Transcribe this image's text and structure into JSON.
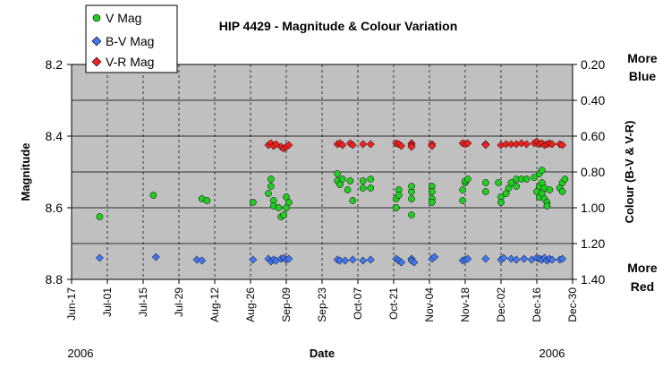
{
  "chart_data": {
    "type": "scatter",
    "title": "HIP 4429 - Magnitude & Colour Variation",
    "xlabel": "Date",
    "ylabel": "Magnitude",
    "y2label": "Colour (B-V & V-R)",
    "x_year_left": "2006",
    "x_year_right": "2006",
    "y2_top_note": [
      "More",
      "Blue"
    ],
    "y2_bottom_note": [
      "More",
      "Red"
    ],
    "x_ticks": [
      "Jun-17",
      "Jul-01",
      "Jul-15",
      "Jul-29",
      "Aug-12",
      "Aug-26",
      "Sep-09",
      "Sep-23",
      "Oct-07",
      "Oct-21",
      "Nov-04",
      "Nov-18",
      "Dec-02",
      "Dec-16",
      "Dec-30"
    ],
    "x_range": [
      "2006-06-17",
      "2006-12-30"
    ],
    "y_ticks": [
      "8.2",
      "8.4",
      "8.6",
      "8.8"
    ],
    "y_range": [
      8.2,
      8.8
    ],
    "y_inverted": true,
    "y2_ticks": [
      "0.20",
      "0.40",
      "0.60",
      "0.80",
      "1.00",
      "1.20",
      "1.40"
    ],
    "y2_range": [
      0.2,
      1.4
    ],
    "y2_inverted": true,
    "grid": {
      "horizontal": true,
      "vertical": "dashed"
    },
    "legend_position": "top-left",
    "series": [
      {
        "name": "V Mag",
        "axis": "left",
        "color": "#22cc22",
        "marker": "circle",
        "points": [
          [
            "2006-06-28",
            8.625
          ],
          [
            "2006-07-19",
            8.565
          ],
          [
            "2006-08-07",
            8.575
          ],
          [
            "2006-08-09",
            8.58
          ],
          [
            "2006-08-27",
            8.585
          ],
          [
            "2006-09-02",
            8.56
          ],
          [
            "2006-09-03",
            8.52
          ],
          [
            "2006-09-03",
            8.54
          ],
          [
            "2006-09-04",
            8.58
          ],
          [
            "2006-09-04",
            8.595
          ],
          [
            "2006-09-06",
            8.6
          ],
          [
            "2006-09-07",
            8.625
          ],
          [
            "2006-09-08",
            8.62
          ],
          [
            "2006-09-09",
            8.57
          ],
          [
            "2006-09-09",
            8.6
          ],
          [
            "2006-09-10",
            8.585
          ],
          [
            "2006-09-29",
            8.505
          ],
          [
            "2006-09-29",
            8.525
          ],
          [
            "2006-09-30",
            8.535
          ],
          [
            "2006-10-01",
            8.52
          ],
          [
            "2006-10-03",
            8.55
          ],
          [
            "2006-10-04",
            8.525
          ],
          [
            "2006-10-05",
            8.58
          ],
          [
            "2006-10-09",
            8.525
          ],
          [
            "2006-10-09",
            8.545
          ],
          [
            "2006-10-12",
            8.52
          ],
          [
            "2006-10-12",
            8.545
          ],
          [
            "2006-10-22",
            8.6
          ],
          [
            "2006-10-22",
            8.575
          ],
          [
            "2006-10-23",
            8.55
          ],
          [
            "2006-10-23",
            8.565
          ],
          [
            "2006-10-28",
            8.555
          ],
          [
            "2006-10-28",
            8.575
          ],
          [
            "2006-10-28",
            8.62
          ],
          [
            "2006-10-28",
            8.54
          ],
          [
            "2006-11-05",
            8.54
          ],
          [
            "2006-11-05",
            8.555
          ],
          [
            "2006-11-05",
            8.575
          ],
          [
            "2006-11-05",
            8.585
          ],
          [
            "2006-11-17",
            8.55
          ],
          [
            "2006-11-17",
            8.58
          ],
          [
            "2006-11-18",
            8.53
          ],
          [
            "2006-11-18",
            8.525
          ],
          [
            "2006-11-19",
            8.52
          ],
          [
            "2006-11-26",
            8.53
          ],
          [
            "2006-11-26",
            8.555
          ],
          [
            "2006-12-01",
            8.53
          ],
          [
            "2006-12-02",
            8.57
          ],
          [
            "2006-12-02",
            8.585
          ],
          [
            "2006-12-04",
            8.56
          ],
          [
            "2006-12-05",
            8.545
          ],
          [
            "2006-12-06",
            8.53
          ],
          [
            "2006-12-08",
            8.52
          ],
          [
            "2006-12-08",
            8.54
          ],
          [
            "2006-12-10",
            8.52
          ],
          [
            "2006-12-12",
            8.52
          ],
          [
            "2006-12-15",
            8.515
          ],
          [
            "2006-12-16",
            8.555
          ],
          [
            "2006-12-17",
            8.54
          ],
          [
            "2006-12-17",
            8.505
          ],
          [
            "2006-12-17",
            8.57
          ],
          [
            "2006-12-18",
            8.53
          ],
          [
            "2006-12-18",
            8.495
          ],
          [
            "2006-12-18",
            8.56
          ],
          [
            "2006-12-19",
            8.545
          ],
          [
            "2006-12-19",
            8.575
          ],
          [
            "2006-12-20",
            8.585
          ],
          [
            "2006-12-20",
            8.595
          ],
          [
            "2006-12-21",
            8.55
          ],
          [
            "2006-12-25",
            8.545
          ],
          [
            "2006-12-26",
            8.53
          ],
          [
            "2006-12-26",
            8.555
          ],
          [
            "2006-12-27",
            8.52
          ]
        ]
      },
      {
        "name": "B-V Mag",
        "axis": "right",
        "color": "#4477ee",
        "marker": "diamond",
        "points": [
          [
            "2006-06-28",
            1.28
          ],
          [
            "2006-07-20",
            1.275
          ],
          [
            "2006-08-05",
            1.29
          ],
          [
            "2006-08-07",
            1.295
          ],
          [
            "2006-08-27",
            1.29
          ],
          [
            "2006-09-02",
            1.285
          ],
          [
            "2006-09-03",
            1.3
          ],
          [
            "2006-09-04",
            1.29
          ],
          [
            "2006-09-05",
            1.295
          ],
          [
            "2006-09-07",
            1.285
          ],
          [
            "2006-09-08",
            1.28
          ],
          [
            "2006-09-09",
            1.29
          ],
          [
            "2006-09-10",
            1.285
          ],
          [
            "2006-09-29",
            1.29
          ],
          [
            "2006-09-30",
            1.295
          ],
          [
            "2006-10-02",
            1.295
          ],
          [
            "2006-10-05",
            1.29
          ],
          [
            "2006-10-09",
            1.295
          ],
          [
            "2006-10-12",
            1.29
          ],
          [
            "2006-10-22",
            1.285
          ],
          [
            "2006-10-23",
            1.295
          ],
          [
            "2006-10-24",
            1.305
          ],
          [
            "2006-10-28",
            1.285
          ],
          [
            "2006-10-28",
            1.295
          ],
          [
            "2006-10-29",
            1.305
          ],
          [
            "2006-11-05",
            1.285
          ],
          [
            "2006-11-06",
            1.275
          ],
          [
            "2006-11-17",
            1.295
          ],
          [
            "2006-11-18",
            1.29
          ],
          [
            "2006-11-19",
            1.285
          ],
          [
            "2006-11-26",
            1.285
          ],
          [
            "2006-12-02",
            1.29
          ],
          [
            "2006-12-03",
            1.28
          ],
          [
            "2006-12-06",
            1.285
          ],
          [
            "2006-12-08",
            1.29
          ],
          [
            "2006-12-11",
            1.285
          ],
          [
            "2006-12-14",
            1.29
          ],
          [
            "2006-12-16",
            1.28
          ],
          [
            "2006-12-17",
            1.285
          ],
          [
            "2006-12-18",
            1.29
          ],
          [
            "2006-12-19",
            1.28
          ],
          [
            "2006-12-20",
            1.295
          ],
          [
            "2006-12-21",
            1.285
          ],
          [
            "2006-12-22",
            1.29
          ],
          [
            "2006-12-25",
            1.29
          ],
          [
            "2006-12-26",
            1.285
          ]
        ]
      },
      {
        "name": "V-R Mag",
        "axis": "right",
        "color": "#ee2222",
        "marker": "diamond",
        "points": [
          [
            "2006-09-02",
            0.65
          ],
          [
            "2006-09-03",
            0.64
          ],
          [
            "2006-09-04",
            0.655
          ],
          [
            "2006-09-05",
            0.645
          ],
          [
            "2006-09-07",
            0.66
          ],
          [
            "2006-09-08",
            0.67
          ],
          [
            "2006-09-09",
            0.66
          ],
          [
            "2006-09-10",
            0.65
          ],
          [
            "2006-09-29",
            0.645
          ],
          [
            "2006-09-30",
            0.64
          ],
          [
            "2006-10-01",
            0.65
          ],
          [
            "2006-10-04",
            0.64
          ],
          [
            "2006-10-05",
            0.65
          ],
          [
            "2006-10-09",
            0.645
          ],
          [
            "2006-10-12",
            0.645
          ],
          [
            "2006-10-22",
            0.64
          ],
          [
            "2006-10-23",
            0.645
          ],
          [
            "2006-10-24",
            0.655
          ],
          [
            "2006-10-28",
            0.64
          ],
          [
            "2006-10-28",
            0.65
          ],
          [
            "2006-10-28",
            0.66
          ],
          [
            "2006-11-05",
            0.645
          ],
          [
            "2006-11-05",
            0.655
          ],
          [
            "2006-11-17",
            0.64
          ],
          [
            "2006-11-18",
            0.645
          ],
          [
            "2006-11-19",
            0.64
          ],
          [
            "2006-11-26",
            0.645
          ],
          [
            "2006-11-26",
            0.65
          ],
          [
            "2006-12-02",
            0.65
          ],
          [
            "2006-12-04",
            0.645
          ],
          [
            "2006-12-06",
            0.645
          ],
          [
            "2006-12-08",
            0.645
          ],
          [
            "2006-12-10",
            0.64
          ],
          [
            "2006-12-12",
            0.645
          ],
          [
            "2006-12-15",
            0.64
          ],
          [
            "2006-12-16",
            0.63
          ],
          [
            "2006-12-17",
            0.645
          ],
          [
            "2006-12-18",
            0.64
          ],
          [
            "2006-12-19",
            0.65
          ],
          [
            "2006-12-20",
            0.645
          ],
          [
            "2006-12-21",
            0.64
          ],
          [
            "2006-12-22",
            0.645
          ],
          [
            "2006-12-25",
            0.645
          ],
          [
            "2006-12-26",
            0.65
          ]
        ]
      }
    ]
  }
}
